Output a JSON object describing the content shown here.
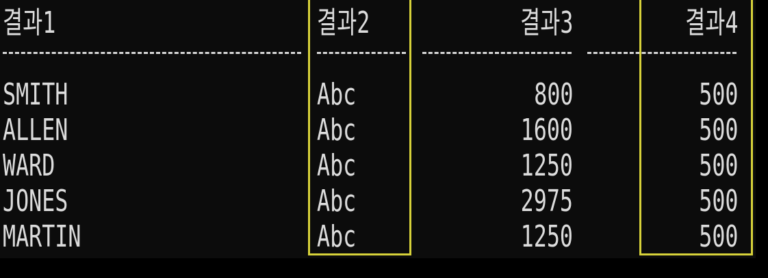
{
  "table": {
    "headers": [
      "결과1",
      "결과2",
      "결과3",
      "결과4"
    ],
    "rows": [
      [
        "SMITH",
        "Abc",
        "800",
        "500"
      ],
      [
        "ALLEN",
        "Abc",
        "1600",
        "500"
      ],
      [
        "WARD",
        "Abc",
        "1250",
        "500"
      ],
      [
        "JONES",
        "Abc",
        "2975",
        "500"
      ],
      [
        "MARTIN",
        "Abc",
        "1250",
        "500"
      ]
    ]
  },
  "highlight_color": "#d7d23a",
  "highlighted_columns": [
    "결과2",
    "결과4"
  ]
}
